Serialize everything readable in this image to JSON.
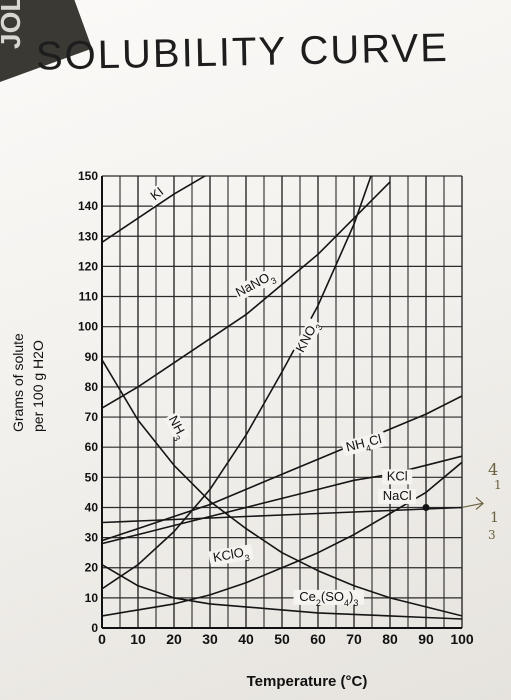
{
  "page": {
    "title": "SOLUBILITY CURVE",
    "corner_text": "JOL"
  },
  "chart_data": {
    "type": "line",
    "title": "SOLUBILITY CURVE",
    "xlabel": "Temperature (°C)",
    "ylabel_line1": "Grams of solute",
    "ylabel_line2": "per 100 g H2O",
    "xlim": [
      0,
      100
    ],
    "ylim": [
      0,
      150
    ],
    "x_ticks": [
      "0",
      "10",
      "20",
      "30",
      "40",
      "50",
      "60",
      "70",
      "80",
      "90",
      "100"
    ],
    "y_ticks": [
      "0",
      "10",
      "20",
      "30",
      "40",
      "50",
      "60",
      "70",
      "80",
      "90",
      "100",
      "110",
      "120",
      "130",
      "140",
      "150"
    ],
    "grid": true,
    "series": [
      {
        "name": "KI",
        "points": [
          [
            0,
            128
          ],
          [
            10,
            136
          ],
          [
            20,
            144
          ],
          [
            30,
            151
          ]
        ]
      },
      {
        "name": "NaNO3",
        "points": [
          [
            0,
            73
          ],
          [
            10,
            80
          ],
          [
            20,
            88
          ],
          [
            30,
            96
          ],
          [
            40,
            104
          ],
          [
            50,
            114
          ],
          [
            60,
            124
          ],
          [
            70,
            136
          ],
          [
            80,
            148
          ]
        ]
      },
      {
        "name": "KNO3",
        "points": [
          [
            0,
            13
          ],
          [
            10,
            21
          ],
          [
            20,
            32
          ],
          [
            30,
            46
          ],
          [
            40,
            64
          ],
          [
            50,
            85
          ],
          [
            60,
            107
          ],
          [
            70,
            134
          ],
          [
            75,
            151
          ]
        ]
      },
      {
        "name": "NH3",
        "points": [
          [
            0,
            89
          ],
          [
            10,
            69
          ],
          [
            20,
            54
          ],
          [
            30,
            42
          ],
          [
            40,
            33
          ],
          [
            50,
            25
          ],
          [
            60,
            19
          ],
          [
            70,
            14
          ],
          [
            80,
            10
          ],
          [
            90,
            7
          ],
          [
            100,
            4
          ]
        ]
      },
      {
        "name": "NH4Cl",
        "points": [
          [
            0,
            29
          ],
          [
            10,
            33
          ],
          [
            20,
            37
          ],
          [
            30,
            41
          ],
          [
            40,
            46
          ],
          [
            50,
            51
          ],
          [
            60,
            56
          ],
          [
            70,
            61
          ],
          [
            80,
            66
          ],
          [
            90,
            71
          ],
          [
            100,
            77
          ]
        ]
      },
      {
        "name": "KCl",
        "points": [
          [
            0,
            28
          ],
          [
            10,
            31
          ],
          [
            20,
            34
          ],
          [
            30,
            37
          ],
          [
            40,
            40
          ],
          [
            50,
            43
          ],
          [
            60,
            46
          ],
          [
            70,
            49
          ],
          [
            80,
            51
          ],
          [
            90,
            54
          ],
          [
            100,
            57
          ]
        ]
      },
      {
        "name": "NaCl",
        "points": [
          [
            0,
            35
          ],
          [
            10,
            35.5
          ],
          [
            20,
            36
          ],
          [
            30,
            36.5
          ],
          [
            40,
            37
          ],
          [
            50,
            37.5
          ],
          [
            60,
            38
          ],
          [
            70,
            38.5
          ],
          [
            80,
            39
          ],
          [
            90,
            39.5
          ],
          [
            100,
            40
          ]
        ]
      },
      {
        "name": "KClO3",
        "points": [
          [
            0,
            4
          ],
          [
            10,
            6
          ],
          [
            20,
            8
          ],
          [
            30,
            11
          ],
          [
            40,
            15
          ],
          [
            50,
            20
          ],
          [
            60,
            25
          ],
          [
            70,
            31
          ],
          [
            80,
            38
          ],
          [
            90,
            45
          ],
          [
            100,
            55
          ]
        ]
      },
      {
        "name": "Ce2(SO4)3",
        "points": [
          [
            0,
            21
          ],
          [
            10,
            14
          ],
          [
            20,
            10
          ],
          [
            30,
            8
          ],
          [
            40,
            7
          ],
          [
            50,
            6
          ],
          [
            60,
            5
          ],
          [
            70,
            4.5
          ],
          [
            80,
            4
          ],
          [
            90,
            3.5
          ],
          [
            100,
            3
          ]
        ]
      }
    ],
    "labels": [
      {
        "text": "KI",
        "x": 16,
        "y": 143,
        "rotate": -38,
        "sub": ""
      },
      {
        "text": "NaNO3",
        "x": 43,
        "y": 113,
        "rotate": -28,
        "sub": "3"
      },
      {
        "text": "KNO3",
        "x": 58,
        "y": 96,
        "rotate": -62,
        "sub": "3"
      },
      {
        "text": "NH3",
        "x": 20,
        "y": 66,
        "rotate": 62,
        "sub": "3"
      },
      {
        "text": "NH4Cl",
        "x": 73,
        "y": 60,
        "rotate": -14,
        "sub": "4"
      },
      {
        "text": "KCl",
        "x": 82,
        "y": 49,
        "rotate": 0,
        "sub": ""
      },
      {
        "text": "NaCl",
        "x": 82,
        "y": 42.5,
        "rotate": 0,
        "sub": ""
      },
      {
        "text": "KClO3",
        "x": 36,
        "y": 23,
        "rotate": -10,
        "sub": "3"
      },
      {
        "text": "Ce2(SO4)3",
        "x": 63,
        "y": 9,
        "rotate": 0,
        "sub": ""
      }
    ],
    "marked_points": [
      [
        90,
        40
      ]
    ],
    "label_text": {
      "KI": "KI",
      "NaNO3_main": "NaNO",
      "KNO3_main": "KNO",
      "NH3_main": "NH",
      "NH4Cl_a": "NH",
      "NH4Cl_b": "Cl",
      "KCl": "KCl",
      "NaCl": "NaCl",
      "KClO3_main": "KClO",
      "Ce_a": "Ce",
      "Ce_b": "(SO",
      "Ce_c": ")",
      "sub2": "2",
      "sub3": "3",
      "sub4": "4"
    }
  },
  "annotations": {
    "right_1": "4",
    "right_2": "1",
    "right_3": "1",
    "right_4": "3"
  }
}
